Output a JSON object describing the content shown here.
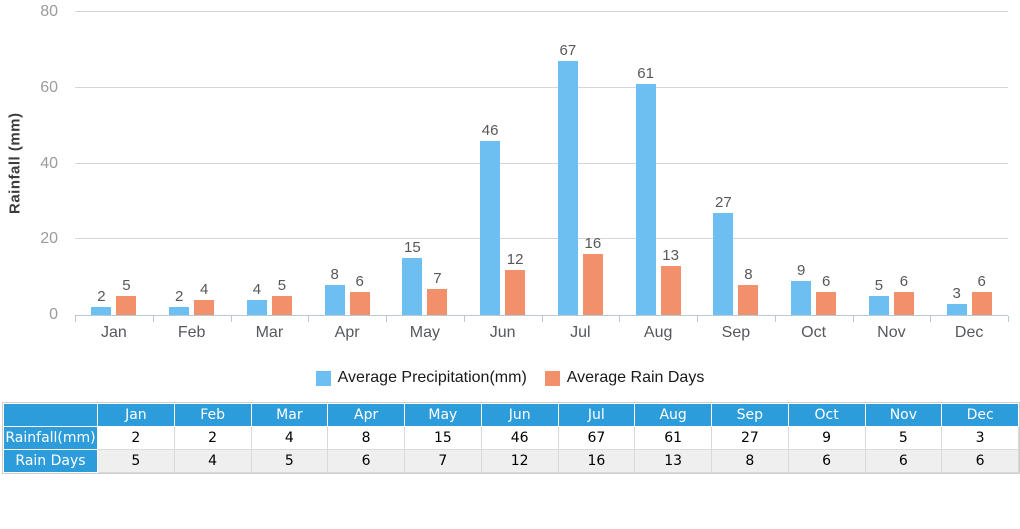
{
  "chart_data": {
    "type": "bar",
    "title": "",
    "categories": [
      "Jan",
      "Feb",
      "Mar",
      "Apr",
      "May",
      "Jun",
      "Jul",
      "Aug",
      "Sep",
      "Oct",
      "Nov",
      "Dec"
    ],
    "series": [
      {
        "name": "Average Precipitation(mm)",
        "color": "#6DBEF1",
        "values": [
          2,
          2,
          4,
          8,
          15,
          46,
          67,
          61,
          27,
          9,
          5,
          3
        ]
      },
      {
        "name": "Average Rain Days",
        "color": "#F2906C",
        "values": [
          5,
          4,
          5,
          6,
          7,
          12,
          16,
          13,
          8,
          6,
          6,
          6
        ]
      }
    ],
    "xlabel": "",
    "ylabel": "Rainfall (mm)",
    "ylim": [
      0,
      80
    ],
    "yticks": [
      0,
      20,
      40,
      60,
      80
    ],
    "grid": true,
    "legend_position": "bottom-center",
    "bar_value_labels": true
  },
  "table": {
    "corner_label": "",
    "columns": [
      "Jan",
      "Feb",
      "Mar",
      "Apr",
      "May",
      "Jun",
      "Jul",
      "Aug",
      "Sep",
      "Oct",
      "Nov",
      "Dec"
    ],
    "rows": [
      {
        "label": "Rainfall(mm)",
        "values": [
          2,
          2,
          4,
          8,
          15,
          46,
          67,
          61,
          27,
          9,
          5,
          3
        ]
      },
      {
        "label": "Rain Days",
        "values": [
          5,
          4,
          5,
          6,
          7,
          12,
          16,
          13,
          8,
          6,
          6,
          6
        ]
      }
    ]
  },
  "colors": {
    "precipitation_blue": "#6DBEF1",
    "rain_days_orange": "#F2906C",
    "table_header_blue": "#2D9CDB",
    "table_alt_row": "#EFEFEF",
    "gridline": "#D6D6D6",
    "axis_line": "#B7C9D8"
  }
}
